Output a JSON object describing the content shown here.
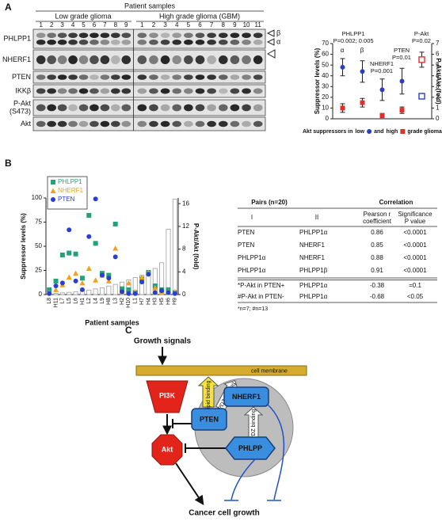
{
  "panels": {
    "a": "A",
    "b": "B",
    "c": "C"
  },
  "blot": {
    "title": "Patient samples",
    "groups": [
      "Low grade glioma",
      "High grade glioma (GBM)"
    ],
    "lanes_low": [
      "1",
      "2",
      "3",
      "4",
      "5",
      "6",
      "7",
      "8",
      "9"
    ],
    "lanes_high": [
      "1",
      "2",
      "3",
      "4",
      "5",
      "6",
      "7",
      "8",
      "9",
      "10",
      "11"
    ],
    "rows": [
      [
        "PHLPP1"
      ],
      [
        "NHERF1"
      ],
      [
        "PTEN"
      ],
      [
        "IKKβ"
      ],
      [
        "P-Akt",
        "(S473)"
      ],
      [
        "Akt"
      ]
    ],
    "markers": [
      "β",
      "α"
    ]
  },
  "chart_data": [
    {
      "type": "scatter",
      "categories": [
        null,
        null,
        null,
        null,
        null
      ],
      "ylabel": "Suppressor levels (%)",
      "y2label": "P-Akt/Akt (fold)",
      "ylim": [
        0,
        70
      ],
      "yticks": [
        0,
        10,
        20,
        30,
        40,
        50,
        60,
        70
      ],
      "y2lim": [
        0,
        7
      ],
      "y2ticks": [
        0,
        1,
        2,
        3,
        4,
        5,
        6,
        7
      ],
      "series": [
        {
          "name": "low",
          "color": "#2a3fbf",
          "marker": "circle",
          "values": [
            48,
            44,
            27,
            35,
            null
          ],
          "errors": [
            8,
            10,
            10,
            12,
            null
          ]
        },
        {
          "name": "high",
          "color": "#e0302a",
          "marker": "square",
          "values": [
            10,
            15,
            3,
            8,
            null
          ],
          "errors": [
            4,
            4,
            2,
            3,
            null
          ]
        },
        {
          "color": "#2a3fbf",
          "marker": "open-square",
          "axis": "y2",
          "values": [
            null,
            null,
            null,
            null,
            2.1
          ],
          "errors": [
            null,
            null,
            null,
            null,
            0.2
          ]
        },
        {
          "color": "#e0302a",
          "marker": "open-square",
          "axis": "y2",
          "values": [
            null,
            null,
            null,
            null,
            5.5
          ],
          "errors": [
            null,
            null,
            null,
            null,
            0.7
          ]
        }
      ],
      "legend_text": [
        "Akt suppressors in",
        "and",
        "grade glioma"
      ],
      "annotations": [
        "PHLPP1",
        "P=0.002; 0.005",
        "α",
        "β",
        "NHERF1",
        "P=0.001",
        "PTEN",
        "P=0.01",
        "P-Akt",
        "P=0.02"
      ]
    },
    {
      "type": "scatter",
      "categories": [
        "L8",
        "H11",
        "L7",
        "L5",
        "L6",
        "H1",
        "L2",
        "L4",
        "L9",
        "H8",
        "L3",
        "H2",
        "H10",
        "L1",
        "H7",
        "H4",
        "H3",
        "H5",
        "H6",
        "H9"
      ],
      "xlabel": "Patient samples",
      "ylabel": "Suppressor levels (%)",
      "y2label": "P-Akt/Akt (fold)",
      "ylim": [
        0,
        100
      ],
      "yticks": [
        0,
        25,
        50,
        75,
        100
      ],
      "y2lim": [
        0,
        17
      ],
      "y2ticks": [
        0,
        4,
        8,
        12,
        16
      ],
      "legend": "top-left",
      "series": [
        {
          "color": "#9e9e9e",
          "marker": "bar",
          "axis": "y2",
          "values": [
            0.1,
            0.2,
            0.3,
            0.4,
            0.5,
            0.6,
            0.8,
            1.0,
            1.2,
            1.5,
            1.8,
            2.2,
            2.6,
            3.0,
            3.4,
            4.0,
            4.6,
            5.6,
            11.5,
            16.8
          ]
        },
        {
          "name": "PHLPP1",
          "color": "#22a17a",
          "marker": "square",
          "values": [
            5,
            14,
            41,
            43,
            42,
            17,
            82,
            53,
            22,
            20,
            73,
            6,
            5,
            2,
            16,
            23,
            9,
            5,
            5,
            2
          ]
        },
        {
          "name": "NHERF1",
          "color": "#f0a21a",
          "marker": "triangle",
          "values": [
            2,
            5,
            10,
            18,
            22,
            12,
            27,
            15,
            20,
            14,
            48,
            3,
            12,
            3,
            18,
            23,
            7,
            3,
            3,
            3
          ]
        },
        {
          "name": "PTEN",
          "color": "#2a3fd0",
          "marker": "circle",
          "values": [
            1,
            9,
            12,
            67,
            14,
            5,
            60,
            99,
            20,
            17,
            39,
            3,
            1,
            1,
            13,
            21,
            2,
            4,
            2,
            1
          ]
        }
      ]
    }
  ],
  "table": {
    "header": [
      "Pairs (n=20)",
      "Correlation"
    ],
    "columns": [
      "I",
      "II",
      [
        "Pearson r",
        "coefficient"
      ],
      [
        "Significance",
        "P value"
      ]
    ],
    "rows": [
      [
        "PTEN",
        "PHLPP1α",
        "0.86",
        "<0.0001"
      ],
      [
        "PTEN",
        "NHERF1",
        "0.85",
        "<0.0001"
      ],
      [
        "PHLPP1α",
        "NHERF1",
        "0.88",
        "<0.0001"
      ],
      [
        "PHLPP1α",
        "PHLPP1β",
        "0.91",
        "<0.0001"
      ]
    ],
    "extra_rows": [
      [
        "*P-Akt in PTEN+",
        "PHLPP1α",
        "-0.38",
        "=0.1"
      ],
      [
        "#P-Akt in PTEN-",
        "PHLPP1α",
        "-0.68",
        "<0.05"
      ]
    ],
    "footnote": "*n=7; #n=13"
  },
  "diagram": {
    "input": "Growth signals",
    "membrane": "cell membrane",
    "nodes": [
      "PI3K",
      "Akt",
      "PTEN",
      "NHERF1",
      "PHLPP"
    ],
    "edges": [
      "lipid binding",
      "PDZ binding",
      "PDZ binding"
    ],
    "output": "Cancer cell growth"
  }
}
